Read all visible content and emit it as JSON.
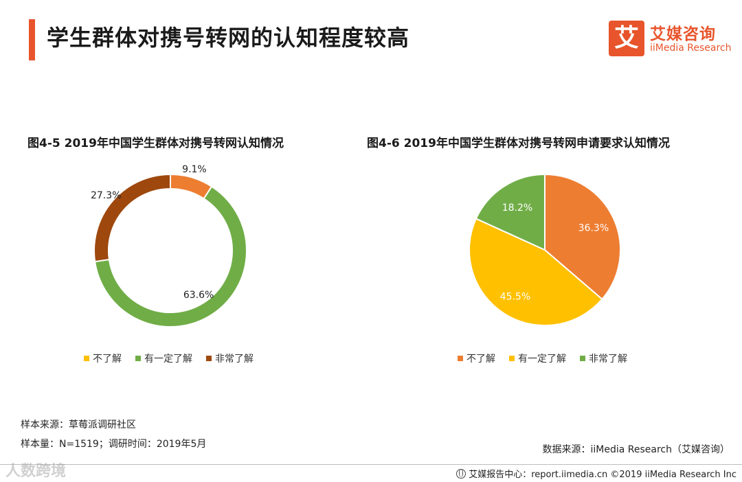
{
  "header": {
    "title": "学生群体对携号转网的认知程度较高",
    "accent_color": "#e8542b"
  },
  "logo": {
    "mark": "艾",
    "name_cn": "艾媒咨询",
    "name_en": "iiMedia Research"
  },
  "chart_data": [
    {
      "type": "pie",
      "style": "donut",
      "title": "图4-5 2019年中国学生群体对携号转网认知情况",
      "labels": [
        "不了解",
        "有一定了解",
        "非常了解"
      ],
      "values": [
        9.1,
        63.6,
        27.3
      ],
      "value_labels": [
        "9.1%",
        "63.6%",
        "27.3%"
      ],
      "colors": [
        "#ed7d31",
        "#70ad47",
        "#9e480e"
      ],
      "legend_colors": [
        "#ffc000",
        "#70ad47",
        "#9e480e"
      ],
      "legend": "bottom"
    },
    {
      "type": "pie",
      "style": "pie",
      "title": "图4-6 2019年中国学生群体对携号转网申请要求认知情况",
      "labels": [
        "不了解",
        "有一定了解",
        "非常了解"
      ],
      "values": [
        36.3,
        45.5,
        18.2
      ],
      "value_labels": [
        "36.3%",
        "45.5%",
        "18.2%"
      ],
      "colors": [
        "#ed7d31",
        "#ffc000",
        "#70ad47"
      ],
      "legend_colors": [
        "#ed7d31",
        "#ffc000",
        "#70ad47"
      ],
      "legend": "bottom"
    }
  ],
  "notes": {
    "source": "样本来源：草莓派调研社区",
    "sample": "样本量：N=1519；调研时间：2019年5月"
  },
  "data_source": "数据来源：iiMedia Research（艾媒咨询）",
  "footer": {
    "text": "艾媒报告中心：report.iimedia.cn ©2019 iiMedia Research Inc"
  },
  "watermark": "人数跨境"
}
